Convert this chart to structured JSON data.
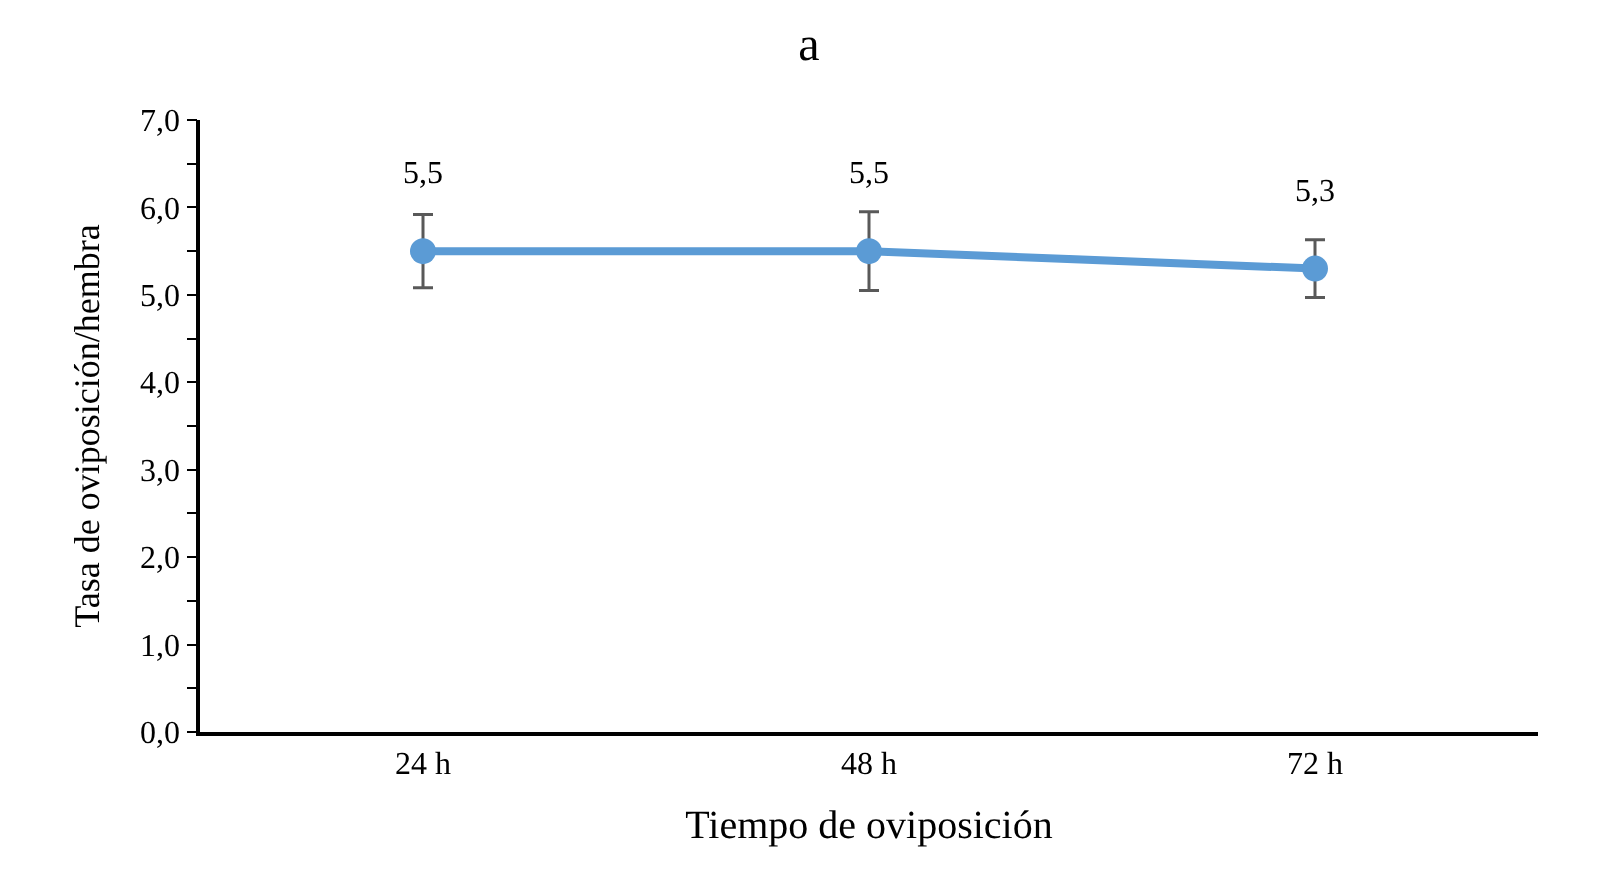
{
  "chart_data": {
    "type": "line",
    "title": "a",
    "xlabel": "Tiempo de oviposición",
    "ylabel": "Tasa de oviposición/hembra",
    "categories": [
      "24 h",
      "48 h",
      "72 h"
    ],
    "series": [
      {
        "color": "#5b9bd5",
        "values": [
          5.5,
          5.5,
          5.3
        ],
        "errors": [
          0.42,
          0.45,
          0.33
        ],
        "value_labels": [
          "5,5",
          "5,5",
          "5,3"
        ]
      }
    ],
    "ylim": [
      0,
      7
    ],
    "yticks": [
      {
        "value": 0,
        "label": "0,0"
      },
      {
        "value": 0.5,
        "label": null
      },
      {
        "value": 1,
        "label": "1,0"
      },
      {
        "value": 1.5,
        "label": null
      },
      {
        "value": 2,
        "label": "2,0"
      },
      {
        "value": 2.5,
        "label": null
      },
      {
        "value": 3,
        "label": "3,0"
      },
      {
        "value": 3.5,
        "label": null
      },
      {
        "value": 4,
        "label": "4,0"
      },
      {
        "value": 4.5,
        "label": null
      },
      {
        "value": 5,
        "label": "5,0"
      },
      {
        "value": 5.5,
        "label": null
      },
      {
        "value": 6,
        "label": "6,0"
      },
      {
        "value": 6.5,
        "label": null
      },
      {
        "value": 7,
        "label": "7,0"
      }
    ],
    "legend": false,
    "marker": "circle",
    "line_style": "solid"
  }
}
